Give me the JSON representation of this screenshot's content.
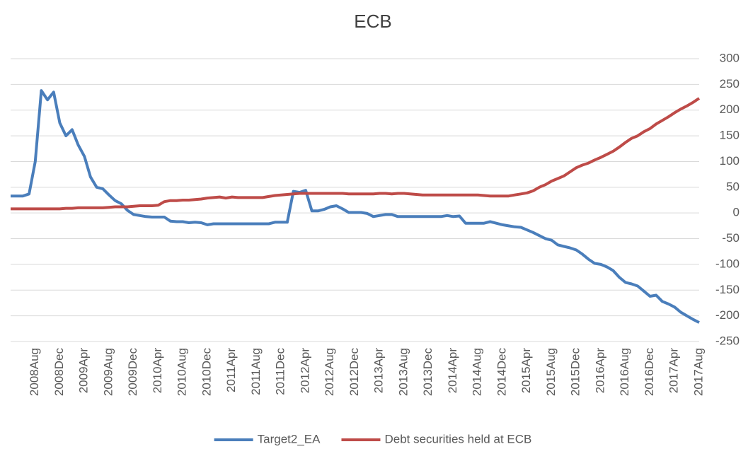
{
  "chart_data": {
    "type": "line",
    "title": "ECB",
    "categories": [
      null,
      null,
      null,
      null,
      "2008Aug",
      null,
      null,
      null,
      "2008Dec",
      null,
      null,
      null,
      "2009Apr",
      null,
      null,
      null,
      "2009Aug",
      null,
      null,
      null,
      "2009Dec",
      null,
      null,
      null,
      "2010Apr",
      null,
      null,
      null,
      "2010Aug",
      null,
      null,
      null,
      "2010Dec",
      null,
      null,
      null,
      "2011Apr",
      null,
      null,
      null,
      "2011Aug",
      null,
      null,
      null,
      "2011Dec",
      null,
      null,
      null,
      "2012Apr",
      null,
      null,
      null,
      "2012Aug",
      null,
      null,
      null,
      "2012Dec",
      null,
      null,
      null,
      "2013Apr",
      null,
      null,
      null,
      "2013Aug",
      null,
      null,
      null,
      "2013Dec",
      null,
      null,
      null,
      "2014Apr",
      null,
      null,
      null,
      "2014Aug",
      null,
      null,
      null,
      "2014Dec",
      null,
      null,
      null,
      "2015Apr",
      null,
      null,
      null,
      "2015Aug",
      null,
      null,
      null,
      "2015Dec",
      null,
      null,
      null,
      "2016Apr",
      null,
      null,
      null,
      "2016Aug",
      null,
      null,
      null,
      "2016Dec",
      null,
      null,
      null,
      "2017Apr",
      null,
      null,
      null,
      "2017Aug"
    ],
    "series": [
      {
        "name": "Target2_EA",
        "color": "#4a7ebb",
        "values": [
          33,
          33,
          33,
          37,
          100,
          238,
          220,
          235,
          175,
          150,
          162,
          132,
          110,
          70,
          50,
          47,
          35,
          24,
          18,
          5,
          -3,
          -5,
          -7,
          -8,
          -8,
          -8,
          -16,
          -17,
          -17,
          -19,
          -18,
          -19,
          -23,
          -21,
          -21,
          -21,
          -21,
          -21,
          -21,
          -21,
          -21,
          -21,
          -21,
          -18,
          -18,
          -18,
          42,
          40,
          44,
          4,
          4,
          7,
          12,
          14,
          8,
          1,
          1,
          1,
          -1,
          -7,
          -5,
          -3,
          -3,
          -7,
          -7,
          -7,
          -7,
          -7,
          -7,
          -7,
          -7,
          -5,
          -7,
          -6,
          -20,
          -20,
          -20,
          -20,
          -17,
          -20,
          -23,
          -25,
          -27,
          -28,
          -33,
          -38,
          -44,
          -50,
          -53,
          -62,
          -65,
          -68,
          -72,
          -80,
          -90,
          -98,
          -100,
          -105,
          -112,
          -125,
          -135,
          -138,
          -142,
          -152,
          -162,
          -160,
          -172,
          -177,
          -183,
          -193,
          -200,
          -207,
          -213
        ]
      },
      {
        "name": "Debt securities held at ECB",
        "color": "#be4b48",
        "values": [
          8,
          8,
          8,
          8,
          8,
          8,
          8,
          8,
          8,
          9,
          9,
          10,
          10,
          10,
          10,
          10,
          11,
          12,
          12,
          12,
          13,
          14,
          14,
          14,
          15,
          22,
          24,
          24,
          25,
          25,
          26,
          27,
          29,
          30,
          31,
          29,
          31,
          30,
          30,
          30,
          30,
          30,
          32,
          34,
          35,
          36,
          37,
          38,
          38,
          38,
          38,
          38,
          38,
          38,
          38,
          37,
          37,
          37,
          37,
          37,
          38,
          38,
          37,
          38,
          38,
          37,
          36,
          35,
          35,
          35,
          35,
          35,
          35,
          35,
          35,
          35,
          35,
          34,
          33,
          33,
          33,
          33,
          35,
          37,
          39,
          43,
          50,
          55,
          62,
          67,
          72,
          80,
          88,
          93,
          97,
          103,
          108,
          114,
          120,
          128,
          137,
          145,
          150,
          158,
          164,
          173,
          180,
          187,
          195,
          202,
          208,
          215,
          223
        ]
      }
    ],
    "ylim": [
      -250,
      300
    ],
    "yticks": [
      -250,
      -200,
      -150,
      -100,
      -50,
      0,
      50,
      100,
      150,
      200,
      250,
      300
    ],
    "grid": true
  }
}
